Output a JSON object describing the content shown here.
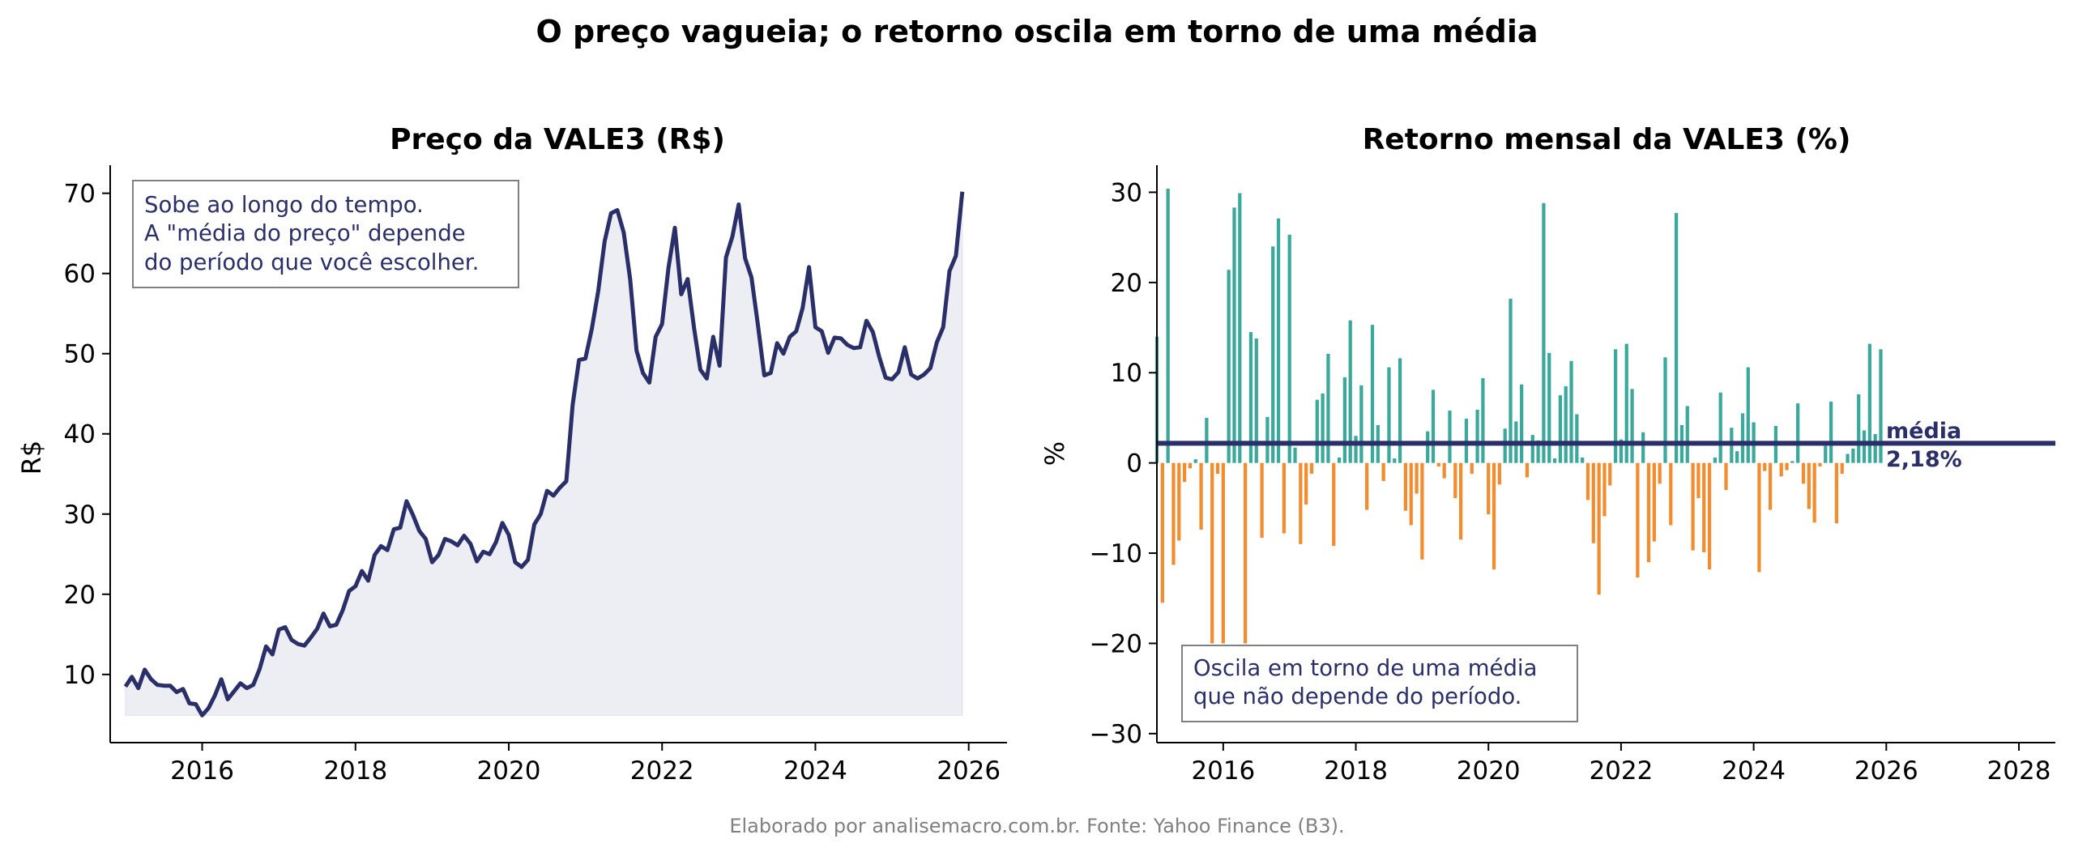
{
  "title": "O preço vagueia; o retorno oscila em torno de uma média",
  "footer": "Elaborado por analisemacro.com.br. Fonte: Yahoo Finance (B3).",
  "colors": {
    "line": "#2b2f69",
    "fill": "#eceef3",
    "positive": "#3aa89a",
    "negative": "#f28c2e",
    "mean": "#2b2f69"
  },
  "chart_data": [
    {
      "type": "area",
      "title": "Preço da VALE3 (R$)",
      "ylabel": "R$",
      "xlim": [
        2014.8,
        2026.5
      ],
      "ylim": [
        1.5,
        73.5
      ],
      "xticks": [
        "2016",
        "2018",
        "2020",
        "2022",
        "2024",
        "2026"
      ],
      "yticks": [
        "10",
        "20",
        "30",
        "40",
        "50",
        "60",
        "70"
      ],
      "annotation": [
        "Sobe ao longo do tempo.",
        "A \"média do preço\" depende",
        "do período que você escolher."
      ],
      "start": "2015-01",
      "frequency": "monthly",
      "values": [
        8.5,
        9.7,
        8.3,
        10.6,
        9.4,
        8.7,
        8.6,
        8.6,
        7.8,
        8.2,
        6.4,
        6.3,
        4.9,
        5.8,
        7.4,
        9.4,
        6.9,
        7.9,
        8.9,
        8.3,
        8.7,
        10.7,
        13.5,
        12.5,
        15.6,
        15.9,
        14.3,
        13.8,
        13.6,
        14.6,
        15.7,
        17.6,
        16.0,
        16.2,
        18.0,
        20.4,
        21.0,
        22.9,
        21.7,
        24.9,
        26.0,
        25.5,
        28.1,
        28.3,
        31.6,
        29.9,
        27.9,
        26.9,
        24.0,
        24.9,
        26.9,
        26.6,
        26.1,
        27.3,
        26.3,
        24.1,
        25.3,
        25.0,
        26.5,
        28.9,
        27.4,
        24.0,
        23.4,
        24.3,
        28.7,
        30.0,
        32.9,
        32.3,
        33.3,
        34.1,
        43.6,
        49.2,
        49.4,
        53.1,
        57.8,
        64.0,
        67.5,
        67.9,
        65.1,
        59.3,
        50.4,
        47.6,
        46.4,
        52.1,
        53.7,
        60.7,
        65.7,
        57.4,
        59.3,
        53.2,
        48.0,
        46.9,
        52.1,
        48.5,
        62.0,
        64.6,
        68.6,
        61.9,
        59.5,
        53.6,
        47.3,
        47.6,
        51.3,
        50.0,
        52.1,
        52.8,
        55.7,
        60.8,
        53.3,
        52.8,
        50.1,
        52.0,
        51.9,
        51.1,
        50.7,
        50.8,
        54.1,
        52.7,
        49.6,
        47.0,
        46.8,
        47.7,
        50.8,
        47.4,
        46.9,
        47.4,
        48.2,
        51.4,
        53.3,
        60.3,
        62.2,
        70.2
      ]
    },
    {
      "type": "bar",
      "title": "Retorno mensal da VALE3 (%)",
      "ylabel": "%",
      "xlim": [
        2015.0,
        2028.55
      ],
      "ylim": [
        -31,
        33
      ],
      "xticks": [
        "2016",
        "2018",
        "2020",
        "2022",
        "2024",
        "2026",
        "2028"
      ],
      "yticks": [
        "−30",
        "−20",
        "−10",
        "0",
        "10",
        "20",
        "30"
      ],
      "annotation": [
        "Oscila em torno de uma média",
        "que não depende do período."
      ],
      "mean": 2.18,
      "mean_label": [
        "média",
        "2,18%"
      ],
      "start": "2015-01",
      "frequency": "monthly",
      "values": [
        14,
        -15.5,
        30.4,
        -11.3,
        -8.6,
        -2.1,
        -0.6,
        0.4,
        -7.4,
        5,
        -20,
        -1.2,
        -20,
        21.4,
        28.3,
        29.9,
        -20,
        14.5,
        13.8,
        -8.3,
        5.1,
        24,
        27.1,
        -7.8,
        25.3,
        1.7,
        -9,
        -4.6,
        -1.2,
        7,
        7.7,
        12.1,
        -9.2,
        0.6,
        9.5,
        15.8,
        3,
        8.6,
        -5.2,
        15.3,
        4.2,
        -2,
        10.6,
        0.5,
        11.6,
        -5.3,
        -6.9,
        -3.4,
        -10.7,
        3.5,
        8.1,
        -0.4,
        -1.7,
        5.8,
        -3.9,
        -8.5,
        4.9,
        -1.2,
        5.9,
        9.4,
        -5.7,
        -11.8,
        -2.4,
        3.8,
        18.2,
        4.6,
        8.7,
        -1.6,
        3.1,
        2.5,
        28.8,
        12.2,
        0.5,
        7.5,
        8.5,
        11.3,
        5.4,
        0.6,
        -4.1,
        -8.9,
        -14.6,
        -5.9,
        -2.5,
        12.6,
        2.6,
        13.2,
        8.2,
        -12.7,
        3.4,
        -11,
        -8.7,
        -2.3,
        11.7,
        -6.9,
        27.7,
        4.2,
        6.3,
        -9.7,
        -3.9,
        -9.9,
        -11.8,
        0.6,
        7.8,
        -3,
        3.9,
        1.3,
        5.5,
        10.6,
        4.5,
        -12.1,
        -0.9,
        -5.2,
        4.1,
        -1.5,
        -0.8,
        0.2,
        6.6,
        -2.3,
        -5.1,
        -6.6,
        -0.4,
        1.9,
        6.8,
        -6.7,
        -1.2,
        1,
        1.6,
        7.6,
        3.6,
        13.2,
        3.2,
        12.6
      ]
    }
  ]
}
